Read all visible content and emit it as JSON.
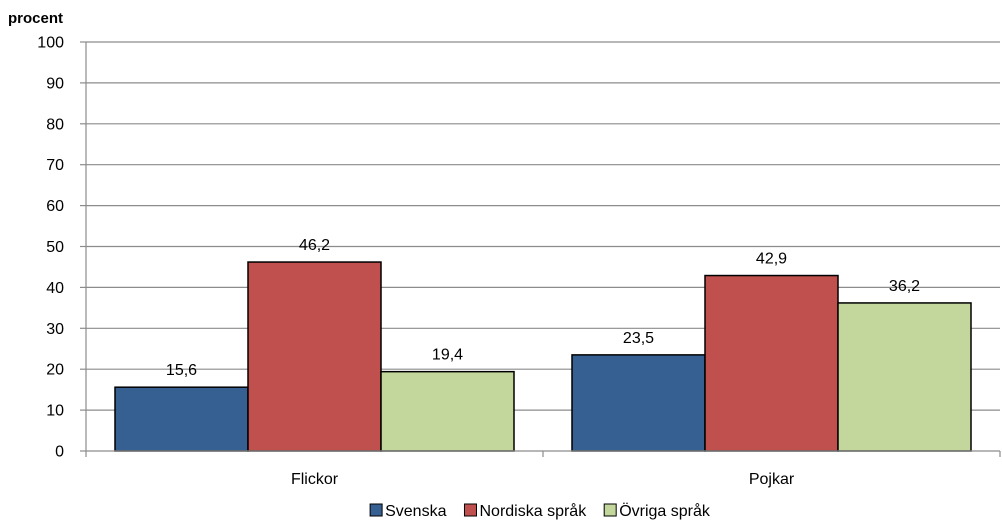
{
  "chart_data": {
    "type": "bar",
    "ylabel": "procent",
    "xlabel": "",
    "ylim": [
      0,
      100
    ],
    "yticks": [
      0,
      10,
      20,
      30,
      40,
      50,
      60,
      70,
      80,
      90,
      100
    ],
    "grid": true,
    "legend_position": "bottom",
    "categories": [
      "Flickor",
      "Pojkar"
    ],
    "series": [
      {
        "name": "Svenska",
        "color": "#376092",
        "values": [
          15.6,
          23.5
        ],
        "labels": [
          "15,6",
          "23,5"
        ]
      },
      {
        "name": "Nordiska språk",
        "color": "#C0504D",
        "values": [
          46.2,
          42.9
        ],
        "labels": [
          "46,2",
          "42,9"
        ]
      },
      {
        "name": "Övriga språk",
        "color": "#C3D69B",
        "values": [
          19.4,
          36.2
        ],
        "labels": [
          "19,4",
          "36,2"
        ]
      }
    ]
  }
}
